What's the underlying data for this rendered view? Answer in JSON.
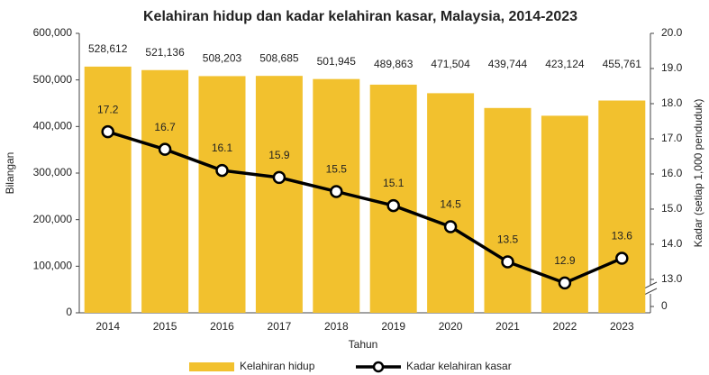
{
  "chart_data": {
    "type": "combo",
    "title": "Kelahiran hidup dan kadar kelahiran kasar, Malaysia, 2014-2023",
    "x_label": "Tahun",
    "y_label": "Bilangan",
    "y2_label": "Kadar (setiap 1,000 penduduk)",
    "categories": [
      "2014",
      "2015",
      "2016",
      "2017",
      "2018",
      "2019",
      "2020",
      "2021",
      "2022",
      "2023"
    ],
    "series": [
      {
        "name": "Kelahiran hidup",
        "type": "bar",
        "color": "#f2c12e",
        "values": [
          528612,
          521136,
          508203,
          508685,
          501945,
          489863,
          471504,
          439744,
          423124,
          455761
        ],
        "value_labels": [
          "528,612",
          "521,136",
          "508,203",
          "508,685",
          "501,945",
          "489,863",
          "471,504",
          "439,744",
          "423,124",
          "455,761"
        ]
      },
      {
        "name": "Kadar kelahiran kasar",
        "type": "line",
        "color": "#000000",
        "axis": "y2",
        "values": [
          17.2,
          16.7,
          16.1,
          15.9,
          15.5,
          15.1,
          14.5,
          13.5,
          12.9,
          13.6
        ]
      }
    ],
    "ylim": [
      0,
      600000
    ],
    "yticks": [
      0,
      {
        "value": 100000,
        "label": "100,000"
      },
      {
        "value": 200000,
        "label": "200,000"
      },
      {
        "value": 300000,
        "label": "300,000"
      },
      {
        "value": 400000,
        "label": "400,000"
      },
      {
        "value": 500000,
        "label": "500,000"
      },
      {
        "value": 600000,
        "label": "600,000"
      }
    ],
    "y2lim": [
      12.05,
      20
    ],
    "y2_break": true,
    "y2ticks": [
      0,
      {
        "value": 13,
        "label": "13.0"
      },
      {
        "value": 14,
        "label": "14.0"
      },
      {
        "value": 15,
        "label": "15.0"
      },
      {
        "value": 16,
        "label": "16.0"
      },
      {
        "value": 17,
        "label": "17.0"
      },
      {
        "value": 18,
        "label": "18.0"
      },
      {
        "value": 19,
        "label": "19.0"
      },
      {
        "value": 20,
        "label": "20.0"
      }
    ],
    "legend": "bottom"
  }
}
